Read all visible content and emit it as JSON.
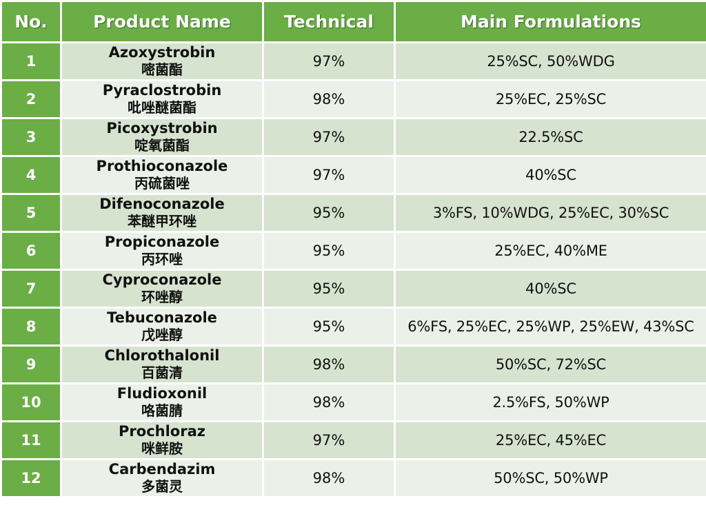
{
  "colors": {
    "header_bg": "#6AAE45",
    "no_col_bg": "#6AAE45",
    "row_even_bg": "#D6E3CF",
    "row_odd_bg": "#EBF1E8"
  },
  "table": {
    "headers": [
      "No.",
      "Product Name",
      "Technical",
      "Main Formulations"
    ],
    "rows": [
      {
        "no": "1",
        "name_en": "Azoxystrobin",
        "name_cn": "嘧菌酯",
        "technical": "97%",
        "formulations": "25%SC, 50%WDG"
      },
      {
        "no": "2",
        "name_en": "Pyraclostrobin",
        "name_cn": "吡唑醚菌酯",
        "technical": "98%",
        "formulations": "25%EC, 25%SC"
      },
      {
        "no": "3",
        "name_en": "Picoxystrobin",
        "name_cn": "啶氧菌酯",
        "technical": "97%",
        "formulations": "22.5%SC"
      },
      {
        "no": "4",
        "name_en": "Prothioconazole",
        "name_cn": "丙硫菌唑",
        "technical": "97%",
        "formulations": "40%SC"
      },
      {
        "no": "5",
        "name_en": "Difenoconazole",
        "name_cn": "苯醚甲环唑",
        "technical": "95%",
        "formulations": "3%FS, 10%WDG, 25%EC, 30%SC"
      },
      {
        "no": "6",
        "name_en": "Propiconazole",
        "name_cn": "丙环唑",
        "technical": "95%",
        "formulations": "25%EC, 40%ME"
      },
      {
        "no": "7",
        "name_en": "Cyproconazole",
        "name_cn": "环唑醇",
        "technical": "95%",
        "formulations": "40%SC"
      },
      {
        "no": "8",
        "name_en": "Tebuconazole",
        "name_cn": "戊唑醇",
        "technical": "95%",
        "formulations": "6%FS, 25%EC, 25%WP, 25%EW, 43%SC"
      },
      {
        "no": "9",
        "name_en": "Chlorothalonil",
        "name_cn": "百菌清",
        "technical": "98%",
        "formulations": "50%SC, 72%SC"
      },
      {
        "no": "10",
        "name_en": "Fludioxonil",
        "name_cn": "咯菌腈",
        "technical": "98%",
        "formulations": "2.5%FS, 50%WP"
      },
      {
        "no": "11",
        "name_en": "Prochloraz",
        "name_cn": "咪鲜胺",
        "technical": "97%",
        "formulations": "25%EC, 45%EC"
      },
      {
        "no": "12",
        "name_en": "Carbendazim",
        "name_cn": "多菌灵",
        "technical": "98%",
        "formulations": "50%SC, 50%WP"
      }
    ]
  }
}
